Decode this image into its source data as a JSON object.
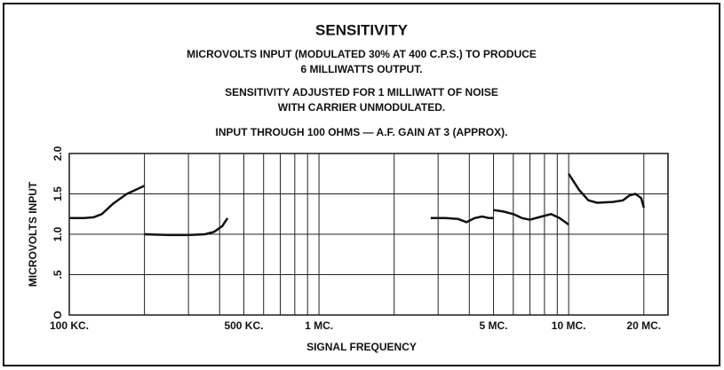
{
  "chart_data": {
    "type": "line",
    "title": "SENSITIVITY",
    "subtitle": [
      "MICROVOLTS INPUT (MODULATED 30% AT 400 C.P.S.) TO PRODUCE",
      "6 MILLIWATTS OUTPUT.",
      "SENSITIVITY ADJUSTED FOR 1 MILLIWATT OF NOISE",
      "WITH CARRIER UNMODULATED.",
      "INPUT THROUGH 100 OHMS — A.F. GAIN AT 3 (APPROX)."
    ],
    "xlabel": "SIGNAL FREQUENCY",
    "ylabel": "MICROVOLTS INPUT",
    "xscale": "log",
    "grid": true,
    "color": "#111",
    "xlim": [
      100,
      25000
    ],
    "ylim": [
      0,
      2
    ],
    "xticks": [
      {
        "value": 100,
        "label": "100 KC."
      },
      {
        "value": 500,
        "label": "500 KC."
      },
      {
        "value": 1000,
        "label": "1 MC."
      },
      {
        "value": 5000,
        "label": "5 MC."
      },
      {
        "value": 10000,
        "label": "10 MC."
      },
      {
        "value": 20000,
        "label": "20 MC."
      }
    ],
    "xminor": [
      200,
      300,
      400,
      600,
      700,
      800,
      900,
      2000,
      3000,
      4000,
      6000,
      7000,
      8000,
      9000
    ],
    "yticks": [
      {
        "value": 0,
        "label": "O"
      },
      {
        "value": 0.5,
        "label": ".5"
      },
      {
        "value": 1,
        "label": "1.0"
      },
      {
        "value": 1.5,
        "label": "1.5"
      },
      {
        "value": 2,
        "label": "2.0"
      }
    ],
    "x": [
      100,
      115,
      125,
      135,
      150,
      170,
      200,
      null,
      200,
      250,
      300,
      350,
      380,
      410,
      430,
      null,
      2800,
      3200,
      3600,
      3900,
      4200,
      4500,
      4800,
      5000,
      null,
      5000,
      5500,
      6000,
      6500,
      7000,
      7800,
      8500,
      9200,
      10000,
      null,
      10000,
      11000,
      12000,
      13000,
      15000,
      16500,
      17500,
      18500,
      19500,
      20000
    ],
    "values": [
      1.2,
      1.2,
      1.21,
      1.25,
      1.38,
      1.5,
      1.6,
      null,
      1.0,
      0.99,
      0.99,
      1.0,
      1.03,
      1.1,
      1.2,
      null,
      1.2,
      1.2,
      1.19,
      1.15,
      1.2,
      1.22,
      1.2,
      1.2,
      null,
      1.3,
      1.28,
      1.25,
      1.2,
      1.18,
      1.22,
      1.25,
      1.2,
      1.12,
      null,
      1.75,
      1.55,
      1.42,
      1.39,
      1.4,
      1.42,
      1.48,
      1.5,
      1.45,
      1.33
    ]
  }
}
